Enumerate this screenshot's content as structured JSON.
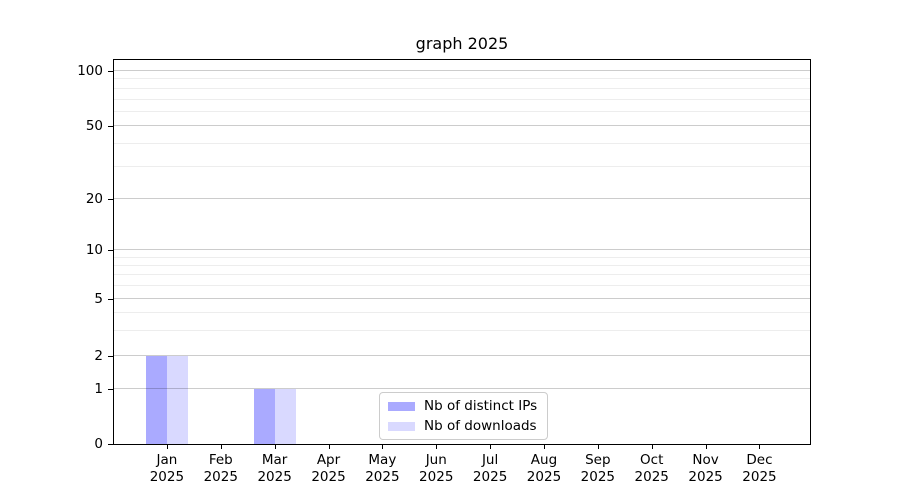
{
  "chart_data": {
    "type": "bar",
    "title": "graph 2025",
    "categories": [
      "Jan 2025",
      "Feb 2025",
      "Mar 2025",
      "Apr 2025",
      "May 2025",
      "Jun 2025",
      "Jul 2025",
      "Aug 2025",
      "Sep 2025",
      "Oct 2025",
      "Nov 2025",
      "Dec 2025"
    ],
    "series": [
      {
        "name": "Nb of distinct IPs",
        "color": "#aaaaff",
        "values": [
          2,
          0,
          1,
          0,
          0,
          0,
          0,
          0,
          0,
          0,
          0,
          0
        ]
      },
      {
        "name": "Nb of downloads",
        "color": "#d9d9ff",
        "values": [
          2,
          0,
          1,
          0,
          0,
          0,
          0,
          0,
          0,
          0,
          0,
          0
        ]
      }
    ],
    "y_axis": {
      "tick_labels": [
        0,
        1,
        2,
        5,
        10,
        20,
        50,
        100
      ],
      "scale": "log-like",
      "grid_major": true,
      "grid_minor": true
    },
    "legend": {
      "position": "lower-center-inside"
    }
  }
}
